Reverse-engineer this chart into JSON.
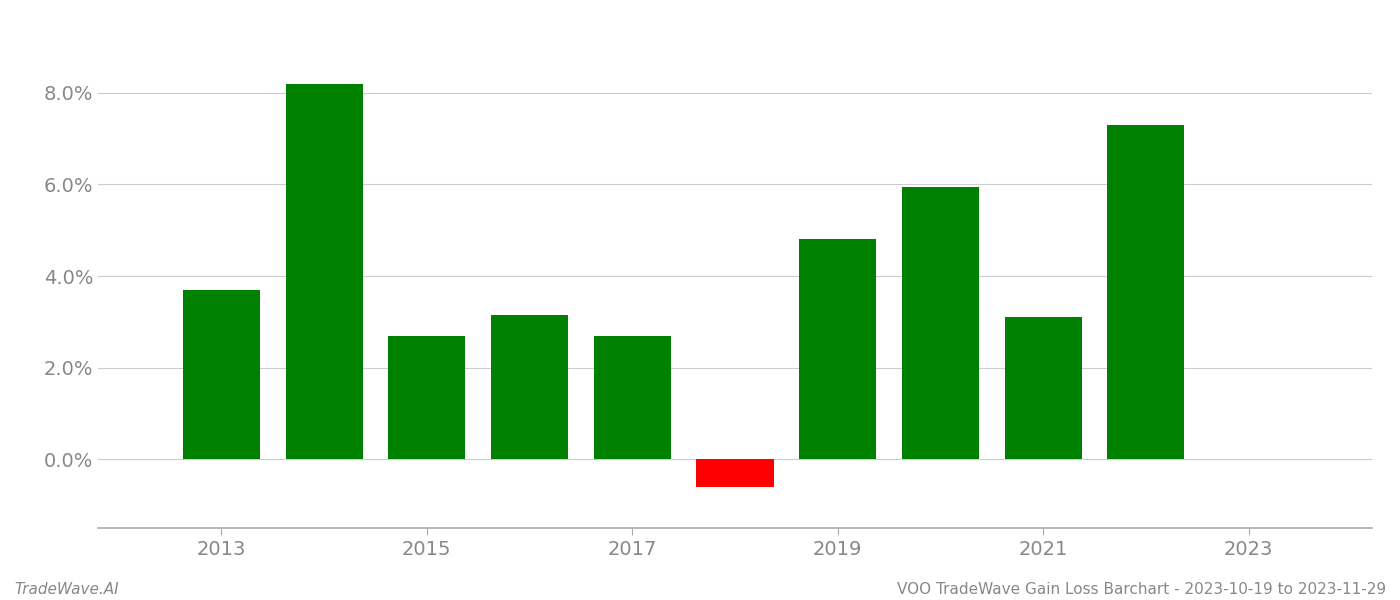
{
  "years": [
    2013,
    2014,
    2015,
    2016,
    2017,
    2018,
    2019,
    2020,
    2021,
    2022
  ],
  "values": [
    0.037,
    0.082,
    0.027,
    0.0315,
    0.027,
    -0.006,
    0.048,
    0.0595,
    0.031,
    0.073
  ],
  "colors": [
    "#008000",
    "#008000",
    "#008000",
    "#008000",
    "#008000",
    "#ff0000",
    "#008000",
    "#008000",
    "#008000",
    "#008000"
  ],
  "bar_width": 0.75,
  "ylim": [
    -0.015,
    0.095
  ],
  "xtick_years": [
    2013,
    2015,
    2017,
    2019,
    2021,
    2023
  ],
  "xlim": [
    2011.8,
    2024.2
  ],
  "footer_left": "TradeWave.AI",
  "footer_right": "VOO TradeWave Gain Loss Barchart - 2023-10-19 to 2023-11-29",
  "grid_color": "#cccccc",
  "axis_color": "#aaaaaa",
  "background_color": "#ffffff",
  "text_color": "#888888",
  "footer_fontsize": 11,
  "tick_fontsize": 14
}
